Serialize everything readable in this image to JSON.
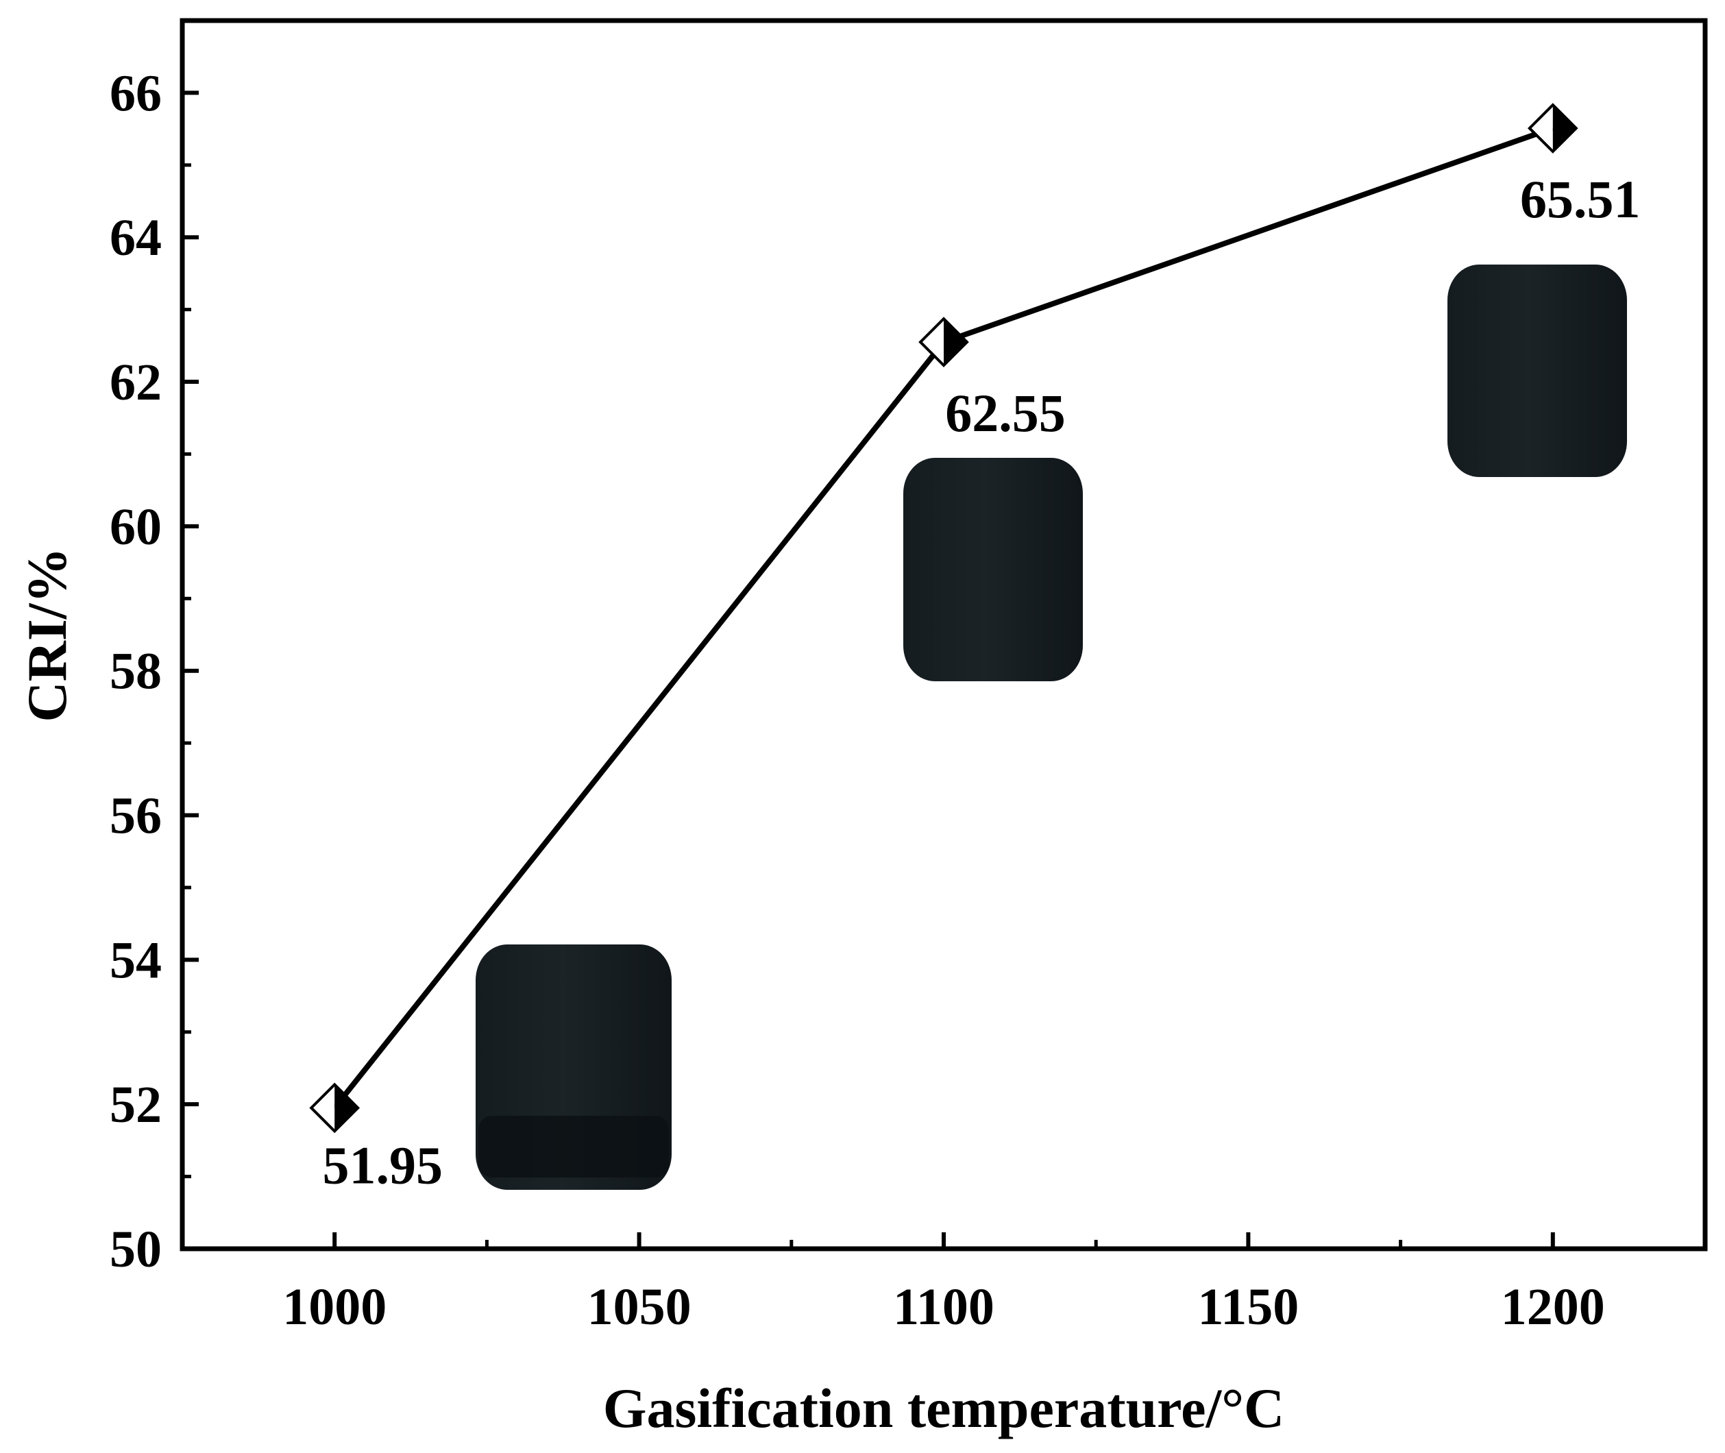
{
  "chart_data": {
    "type": "line",
    "title": "",
    "xlabel": "Gasification temperature/°C",
    "ylabel": "CRI/%",
    "xlim": [
      975,
      1225
    ],
    "ylim": [
      50,
      67
    ],
    "x_ticks": [
      1000,
      1050,
      1100,
      1150,
      1200
    ],
    "x_tick_labels": [
      "1000",
      "1050",
      "1100",
      "1150",
      "1200"
    ],
    "y_ticks": [
      50,
      52,
      54,
      56,
      58,
      60,
      62,
      64,
      66
    ],
    "y_tick_labels": [
      "50",
      "52",
      "54",
      "56",
      "58",
      "60",
      "62",
      "64",
      "66"
    ],
    "grid": false,
    "legend": "none",
    "marker": "half-filled-diamond",
    "line_color": "#000000",
    "series": [
      {
        "x": [
          1000,
          1100,
          1200
        ],
        "y": [
          51.95,
          62.55,
          65.51
        ],
        "data_labels": [
          "51.95",
          "62.55",
          "65.51"
        ]
      }
    ],
    "annotations": [
      {
        "type": "photo",
        "subject": "coke-sample",
        "near_x": 1000
      },
      {
        "type": "photo",
        "subject": "coke-sample",
        "near_x": 1100
      },
      {
        "type": "photo",
        "subject": "coke-sample",
        "near_x": 1200
      }
    ],
    "colors": {
      "sample": "#1b2327"
    }
  }
}
